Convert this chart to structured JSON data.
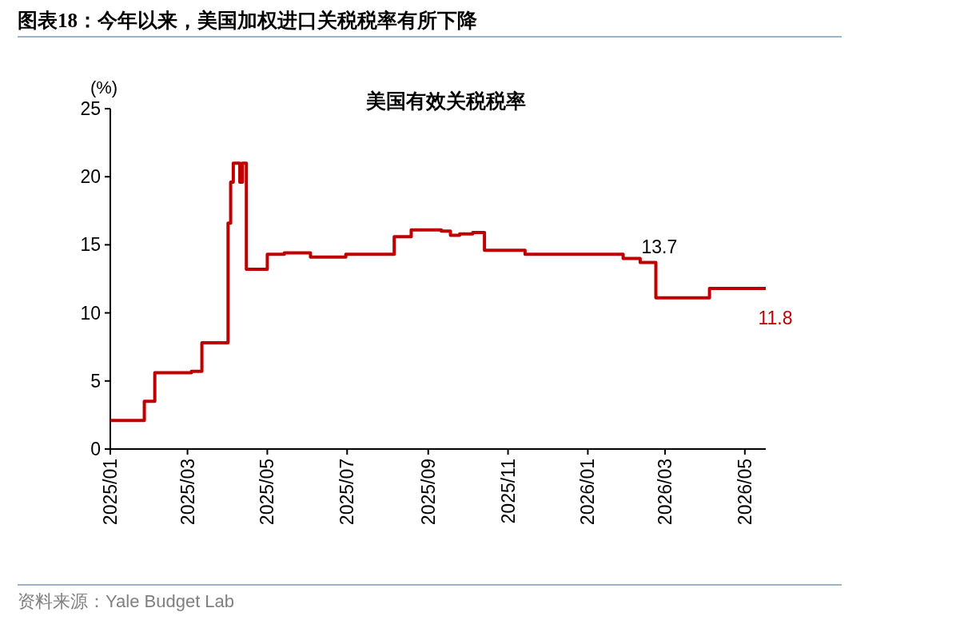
{
  "chart_data": {
    "type": "step",
    "title": "图表18：今年以来，美国加权进口关税税率有所下降",
    "subtitle": "美国有效关税税率",
    "ylabel": "(%)",
    "x": [
      "2025-01-01",
      "2025-01-27",
      "2025-02-04",
      "2025-03-04",
      "2025-03-12",
      "2025-04-01",
      "2025-04-03",
      "2025-04-05",
      "2025-04-10",
      "2025-04-12",
      "2025-04-15",
      "2025-05-01",
      "2025-05-14",
      "2025-06-03",
      "2025-06-30",
      "2025-08-06",
      "2025-08-19",
      "2025-09-11",
      "2025-09-18",
      "2025-09-25",
      "2025-10-05",
      "2025-10-14",
      "2025-11-14",
      "2026-01-28",
      "2026-02-10",
      "2026-02-22",
      "2026-04-04",
      "2026-05-17"
    ],
    "series": [
      {
        "color": "#c00000",
        "values": [
          2.1,
          3.5,
          5.6,
          5.7,
          7.8,
          16.6,
          19.6,
          21.0,
          19.6,
          21.0,
          13.2,
          14.3,
          14.4,
          14.1,
          14.3,
          15.6,
          16.1,
          16.0,
          15.7,
          15.8,
          15.9,
          14.6,
          14.3,
          14.0,
          13.7,
          11.1,
          11.8,
          11.8
        ]
      }
    ],
    "xlim": [
      "2025-01-01",
      "2026-05-17"
    ],
    "xticks": [
      {
        "value": "2025-01-01",
        "label": "2025/01"
      },
      {
        "value": "2025-03-01",
        "label": "2025/03"
      },
      {
        "value": "2025-05-01",
        "label": "2025/05"
      },
      {
        "value": "2025-07-01",
        "label": "2025/07"
      },
      {
        "value": "2025-09-01",
        "label": "2025/09"
      },
      {
        "value": "2025-11-01",
        "label": "2025/11"
      },
      {
        "value": "2026-01-01",
        "label": "2026/01"
      },
      {
        "value": "2026-03-01",
        "label": "2026/03"
      },
      {
        "value": "2026-05-01",
        "label": "2026/05"
      }
    ],
    "ylim": [
      0,
      25
    ],
    "yticks": [
      0,
      5,
      10,
      15,
      20,
      25
    ],
    "annotations": [
      {
        "text": "13.7",
        "x": "2026-02-10",
        "y": 13.7
      },
      {
        "text": "11.8",
        "x": "2026-05-17",
        "y": 11.8
      },
      "资料来源：Yale Budget Lab"
    ]
  }
}
